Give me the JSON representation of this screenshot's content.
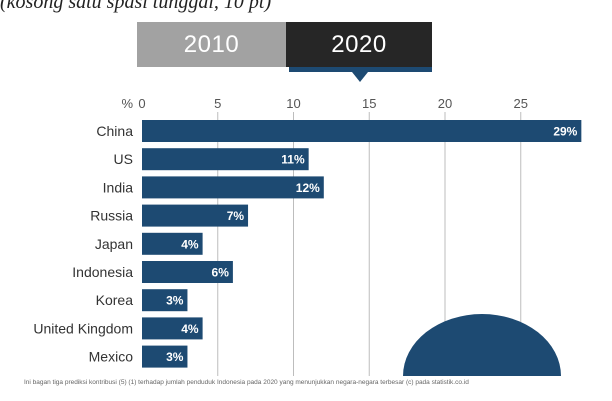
{
  "caption": "(kosong satu spasi tunggal, 10 pt)",
  "tabs": [
    {
      "label": "2010",
      "active": false
    },
    {
      "label": "2020",
      "active": true
    }
  ],
  "colors": {
    "bar": "#1d4a72",
    "tab_inactive": "#a2a2a2",
    "tab_active": "#262626",
    "gridline": "#bdbdbd"
  },
  "chart_data": {
    "type": "bar",
    "orientation": "horizontal",
    "title": "",
    "xlabel": "%",
    "ylabel": "",
    "xlim": [
      0,
      29
    ],
    "xticks": [
      0,
      5,
      10,
      15,
      20,
      25
    ],
    "grid": true,
    "categories": [
      "China",
      "US",
      "India",
      "Russia",
      "Japan",
      "Indonesia",
      "Korea",
      "United Kingdom",
      "Mexico"
    ],
    "values": [
      29,
      11,
      12,
      7,
      4,
      6,
      3,
      4,
      3
    ],
    "data_labels": [
      "29%",
      "11%",
      "12%",
      "7%",
      "4%",
      "6%",
      "3%",
      "4%",
      "3%"
    ]
  },
  "footnote": "Ini bagan tiga prediksi kontribusi (5) (1) terhadap jumlah penduduk Indonesia pada 2020 yang menunjukkan negara-negara terbesar (c) pada statistik.co.id"
}
